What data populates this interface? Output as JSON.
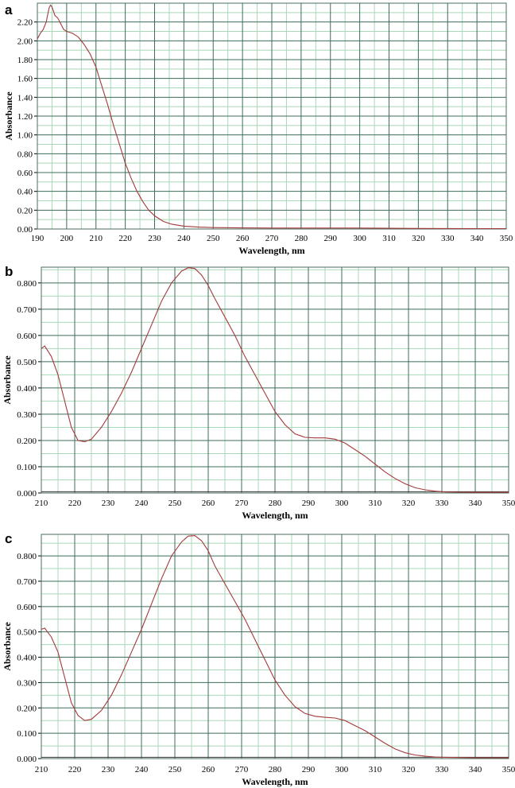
{
  "chart_data": [
    {
      "type": "line",
      "panel_label": "a",
      "xlabel": "Wavelength, nm",
      "ylabel": "Absorbance",
      "xlim": [
        190,
        350
      ],
      "ylim": [
        0,
        2.4
      ],
      "xticks": [
        "190",
        "200",
        "210",
        "220",
        "230",
        "240",
        "250",
        "260",
        "270",
        "280",
        "290",
        "300",
        "310",
        "320",
        "330",
        "340",
        "350"
      ],
      "yticks": [
        "0.00",
        "0.20",
        "0.40",
        "0.60",
        "0.80",
        "1.00",
        "1.20",
        "1.40",
        "1.60",
        "1.80",
        "2.00",
        "2.20"
      ],
      "ytick_values": [
        0,
        0.2,
        0.4,
        0.6,
        0.8,
        1.0,
        1.2,
        1.4,
        1.6,
        1.8,
        2.0,
        2.2
      ],
      "grid": true,
      "series": [
        {
          "x": [
            190,
            191,
            192,
            193,
            194,
            194.5,
            195,
            196,
            197,
            198,
            199,
            200,
            202,
            204,
            206,
            208,
            210,
            212,
            214,
            216,
            218,
            220,
            222,
            224,
            226,
            228,
            230,
            233,
            236,
            240,
            245,
            250,
            260,
            270,
            280,
            290,
            300,
            310,
            320,
            330,
            340,
            350
          ],
          "y": [
            2.02,
            2.08,
            2.12,
            2.2,
            2.35,
            2.38,
            2.36,
            2.27,
            2.24,
            2.18,
            2.12,
            2.1,
            2.08,
            2.04,
            1.96,
            1.86,
            1.72,
            1.52,
            1.32,
            1.1,
            0.9,
            0.7,
            0.54,
            0.4,
            0.29,
            0.2,
            0.14,
            0.08,
            0.05,
            0.03,
            0.02,
            0.015,
            0.012,
            0.01,
            0.01,
            0.01,
            0.01,
            0.008,
            0.006,
            0.005,
            0.004,
            0.004
          ]
        }
      ]
    },
    {
      "type": "line",
      "panel_label": "b",
      "xlabel": "Wavelength, nm",
      "ylabel": "Absorbance",
      "xlim": [
        210,
        350
      ],
      "ylim": [
        0,
        0.86
      ],
      "xticks": [
        "210",
        "220",
        "230",
        "240",
        "250",
        "260",
        "270",
        "280",
        "290",
        "300",
        "310",
        "320",
        "330",
        "340",
        "350"
      ],
      "yticks": [
        "0.000",
        "0.100",
        "0.200",
        "0.300",
        "0.400",
        "0.500",
        "0.600",
        "0.700",
        "0.800"
      ],
      "ytick_values": [
        0,
        0.1,
        0.2,
        0.3,
        0.4,
        0.5,
        0.6,
        0.7,
        0.8
      ],
      "grid": true,
      "baseline": 0.005,
      "series": [
        {
          "x": [
            210,
            211,
            213,
            215,
            217,
            219,
            221,
            223,
            225,
            228,
            231,
            234,
            237,
            240,
            243,
            246,
            249,
            252,
            254,
            256,
            258,
            260,
            262,
            265,
            268,
            271,
            274,
            277,
            280,
            283,
            286,
            289,
            292,
            295,
            298,
            301,
            304,
            307,
            310,
            313,
            316,
            319,
            322,
            325,
            328,
            331,
            335,
            340,
            345,
            350
          ],
          "y": [
            0.55,
            0.56,
            0.52,
            0.45,
            0.35,
            0.25,
            0.2,
            0.195,
            0.205,
            0.25,
            0.31,
            0.38,
            0.46,
            0.55,
            0.64,
            0.73,
            0.8,
            0.845,
            0.858,
            0.855,
            0.83,
            0.79,
            0.74,
            0.67,
            0.6,
            0.52,
            0.45,
            0.38,
            0.31,
            0.26,
            0.225,
            0.212,
            0.21,
            0.21,
            0.205,
            0.19,
            0.165,
            0.14,
            0.11,
            0.08,
            0.055,
            0.035,
            0.02,
            0.012,
            0.007,
            0.004,
            0.003,
            0.002,
            0.002,
            0.002
          ]
        }
      ]
    },
    {
      "type": "line",
      "panel_label": "c",
      "xlabel": "Wavelength, nm",
      "ylabel": "Absorbance",
      "xlim": [
        210,
        350
      ],
      "ylim": [
        0,
        0.885
      ],
      "xticks": [
        "210",
        "220",
        "230",
        "240",
        "250",
        "260",
        "270",
        "280",
        "290",
        "300",
        "310",
        "320",
        "330",
        "340",
        "350"
      ],
      "yticks": [
        "0.000",
        "0.100",
        "0.200",
        "0.300",
        "0.400",
        "0.500",
        "0.600",
        "0.700",
        "0.800"
      ],
      "ytick_values": [
        0,
        0.1,
        0.2,
        0.3,
        0.4,
        0.5,
        0.6,
        0.7,
        0.8
      ],
      "grid": true,
      "baseline": 0.005,
      "series": [
        {
          "x": [
            210,
            211,
            213,
            215,
            217,
            219,
            221,
            223,
            225,
            228,
            231,
            234,
            237,
            240,
            243,
            246,
            249,
            252,
            254,
            256,
            258,
            260,
            262,
            265,
            268,
            271,
            274,
            277,
            280,
            283,
            286,
            289,
            292,
            295,
            298,
            301,
            304,
            307,
            310,
            313,
            316,
            319,
            322,
            325,
            328,
            331,
            335,
            340,
            345,
            350
          ],
          "y": [
            0.51,
            0.515,
            0.48,
            0.42,
            0.32,
            0.22,
            0.17,
            0.15,
            0.155,
            0.19,
            0.25,
            0.33,
            0.42,
            0.51,
            0.61,
            0.71,
            0.8,
            0.855,
            0.878,
            0.88,
            0.86,
            0.82,
            0.76,
            0.69,
            0.62,
            0.55,
            0.47,
            0.39,
            0.31,
            0.25,
            0.205,
            0.178,
            0.167,
            0.163,
            0.16,
            0.15,
            0.13,
            0.11,
            0.085,
            0.06,
            0.038,
            0.023,
            0.014,
            0.009,
            0.006,
            0.005,
            0.004,
            0.003,
            0.003,
            0.003
          ]
        }
      ]
    }
  ],
  "colors": {
    "curve": "#a43a3a",
    "baseline": "#3a3a3a",
    "major_grid": "#3c6e5a",
    "minor_grid": "#a8d8b8"
  }
}
